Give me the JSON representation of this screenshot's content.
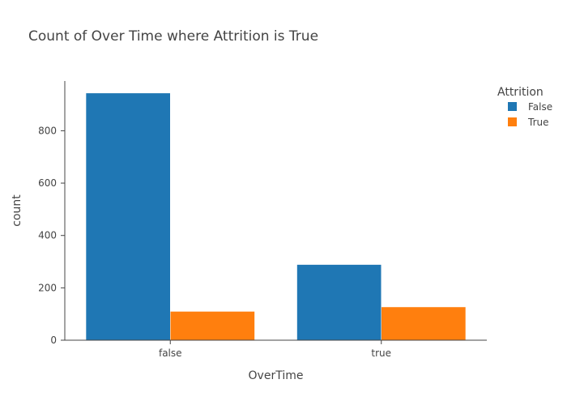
{
  "chart_data": {
    "type": "bar",
    "title": "Count of Over Time where Attrition is True",
    "xlabel": "OverTime",
    "ylabel": "count",
    "categories": [
      "false",
      "true"
    ],
    "series": [
      {
        "name": "False",
        "values": [
          944,
          289
        ],
        "color": "#1f77b4"
      },
      {
        "name": "True",
        "values": [
          110,
          127
        ],
        "color": "#ff7f0e"
      }
    ],
    "ylim": [
      0,
      990
    ],
    "yticks": [
      0,
      200,
      400,
      600,
      800
    ],
    "legend": {
      "title": "Attrition",
      "placement": "top-right"
    },
    "grid": false
  }
}
